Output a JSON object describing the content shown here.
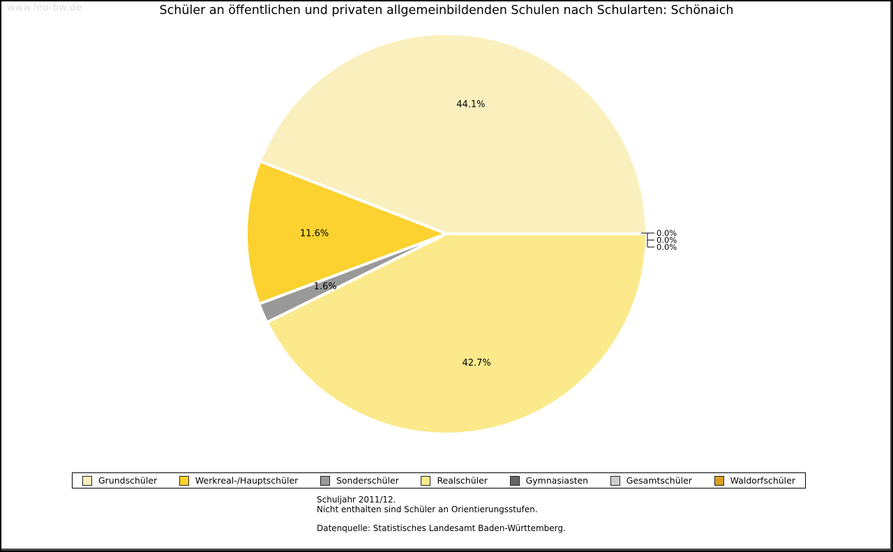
{
  "watermark": "www.leo-bw.de",
  "title": "Schüler an öffentlichen und privaten allgemeinbildenden Schulen nach Schularten: Schönaich",
  "chart_data": {
    "type": "pie",
    "title": "Schüler an öffentlichen und privaten allgemeinbildenden Schulen nach Schularten: Schönaich",
    "unit": "percent",
    "start_angle_deg": 0,
    "direction": "counterclockwise",
    "legend_position": "bottom",
    "label_format": "percent_one_decimal",
    "slices": [
      {
        "label": "Grundschüler",
        "value": 44.1,
        "color": "#FAF0BE"
      },
      {
        "label": "Werkreal-/Hauptschüler",
        "value": 11.6,
        "color": "#FBD22F"
      },
      {
        "label": "Sonderschüler",
        "value": 1.6,
        "color": "#999999"
      },
      {
        "label": "Realschüler",
        "value": 42.7,
        "color": "#FBE98C"
      },
      {
        "label": "Gymnasiasten",
        "value": 0.0,
        "color": "#666666"
      },
      {
        "label": "Gesamtschüler",
        "value": 0.0,
        "color": "#CCCCCC"
      },
      {
        "label": "Waldorfschüler",
        "value": 0.0,
        "color": "#D9A11F"
      }
    ]
  },
  "footer": {
    "line1": "Schuljahr 2011/12.",
    "line2": "Nicht enthalten sind Schüler an Orientierungsstufen.",
    "source": "Datenquelle: Statistisches Landesamt Baden-Württemberg."
  }
}
